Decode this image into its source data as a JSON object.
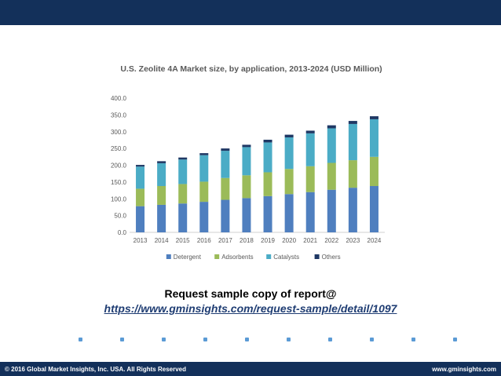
{
  "chart_data": {
    "type": "bar",
    "stacked": true,
    "title": "U.S. Zeolite 4A Market size, by application, 2013-2024 (USD Million)",
    "categories": [
      "2013",
      "2014",
      "2015",
      "2016",
      "2017",
      "2018",
      "2019",
      "2020",
      "2021",
      "2022",
      "2023",
      "2024"
    ],
    "yticks": [
      "0.0",
      "50.0",
      "100.0",
      "150.0",
      "200.0",
      "250.0",
      "300.0",
      "350.0",
      "400.0"
    ],
    "ylim": [
      0,
      400
    ],
    "grid": false,
    "legend": "bottom",
    "series": [
      {
        "name": "Detergent",
        "color": "#4f7fbf",
        "values": [
          78,
          82,
          86,
          91,
          97,
          102,
          108,
          114,
          120,
          127,
          133,
          138
        ]
      },
      {
        "name": "Adsorbents",
        "color": "#9bbb59",
        "values": [
          52,
          56,
          58,
          60,
          65,
          68,
          71,
          75,
          77,
          80,
          82,
          87
        ]
      },
      {
        "name": "Catalysts",
        "color": "#4bacc6",
        "values": [
          66,
          68,
          73,
          79,
          81,
          84,
          89,
          94,
          98,
          103,
          108,
          112
        ]
      },
      {
        "name": "Others",
        "color": "#1f3864",
        "values": [
          5,
          6,
          6,
          6,
          7,
          7,
          8,
          8,
          8,
          9,
          9,
          9
        ]
      }
    ]
  },
  "cta": {
    "text": "Request sample copy of report@",
    "link": "https://www.gminsights.com/request-sample/detail/1097"
  },
  "footer": {
    "copyright": "© 2016 Global Market Insights, Inc. USA. All Rights Reserved",
    "website": "www.gminsights.com"
  },
  "colors": {
    "bar": "#13305a",
    "dot": "#5b9bd5"
  }
}
